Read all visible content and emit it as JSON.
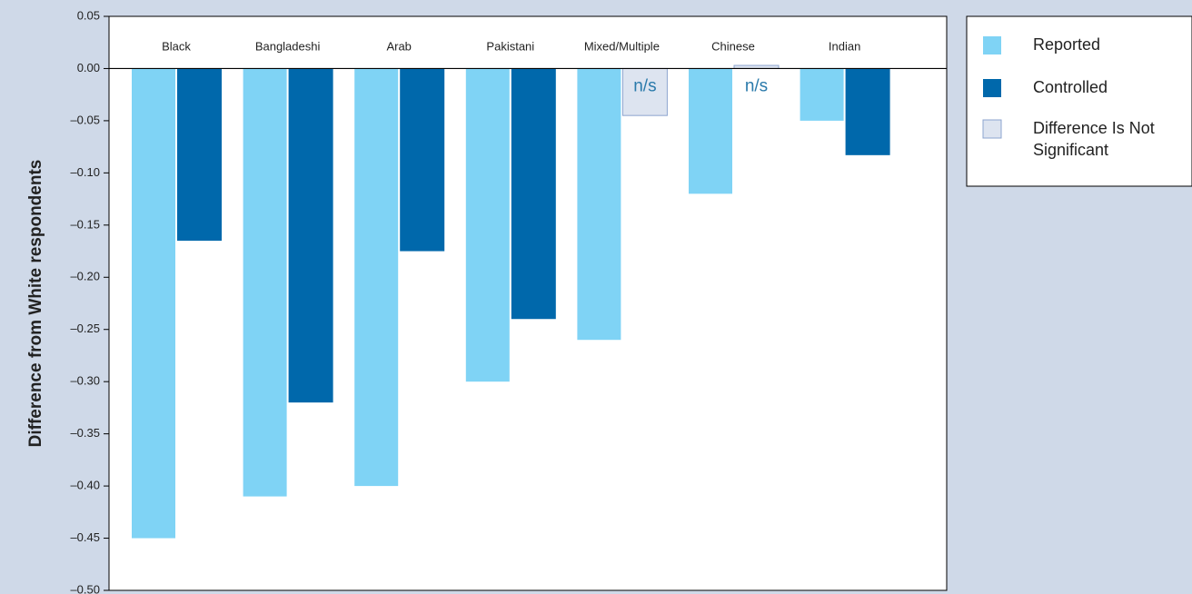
{
  "chart_data": {
    "type": "bar",
    "y_label": "Difference from White respondents",
    "categories": [
      "Black",
      "Bangladeshi",
      "Arab",
      "Pakistani",
      "Mixed/Multiple",
      "Chinese",
      "Indian"
    ],
    "series": [
      {
        "name": "Reported",
        "color": "#7fd3f5",
        "values": [
          -0.45,
          -0.41,
          -0.4,
          -0.3,
          -0.26,
          -0.12,
          -0.05
        ]
      },
      {
        "name": "Controlled",
        "color": "#0068ab",
        "values": [
          -0.165,
          -0.32,
          -0.175,
          -0.24,
          null,
          null,
          -0.083
        ]
      },
      {
        "name": "Difference Is Not Significant",
        "color": "#dde4f0",
        "values": [
          null,
          null,
          null,
          null,
          -0.045,
          0.003,
          null
        ],
        "value_labels": [
          null,
          null,
          null,
          null,
          "n/s",
          "n/s",
          null
        ]
      }
    ],
    "ylim": [
      -0.5,
      0.05
    ],
    "yticks": [
      {
        "value": 0.05,
        "label": "0.05"
      },
      {
        "value": 0,
        "label": "0.00"
      },
      {
        "value": -0.05,
        "label": "–0.05"
      },
      {
        "value": -0.1,
        "label": "–0.10"
      },
      {
        "value": -0.15,
        "label": "–0.15"
      },
      {
        "value": -0.2,
        "label": "–0.20"
      },
      {
        "value": -0.25,
        "label": "–0.25"
      },
      {
        "value": -0.3,
        "label": "–0.30"
      },
      {
        "value": -0.35,
        "label": "–0.35"
      },
      {
        "value": -0.4,
        "label": "–0.40"
      },
      {
        "value": -0.45,
        "label": "–0.45"
      },
      {
        "value": -0.5,
        "label": "–0.50"
      }
    ],
    "legend": "right"
  }
}
